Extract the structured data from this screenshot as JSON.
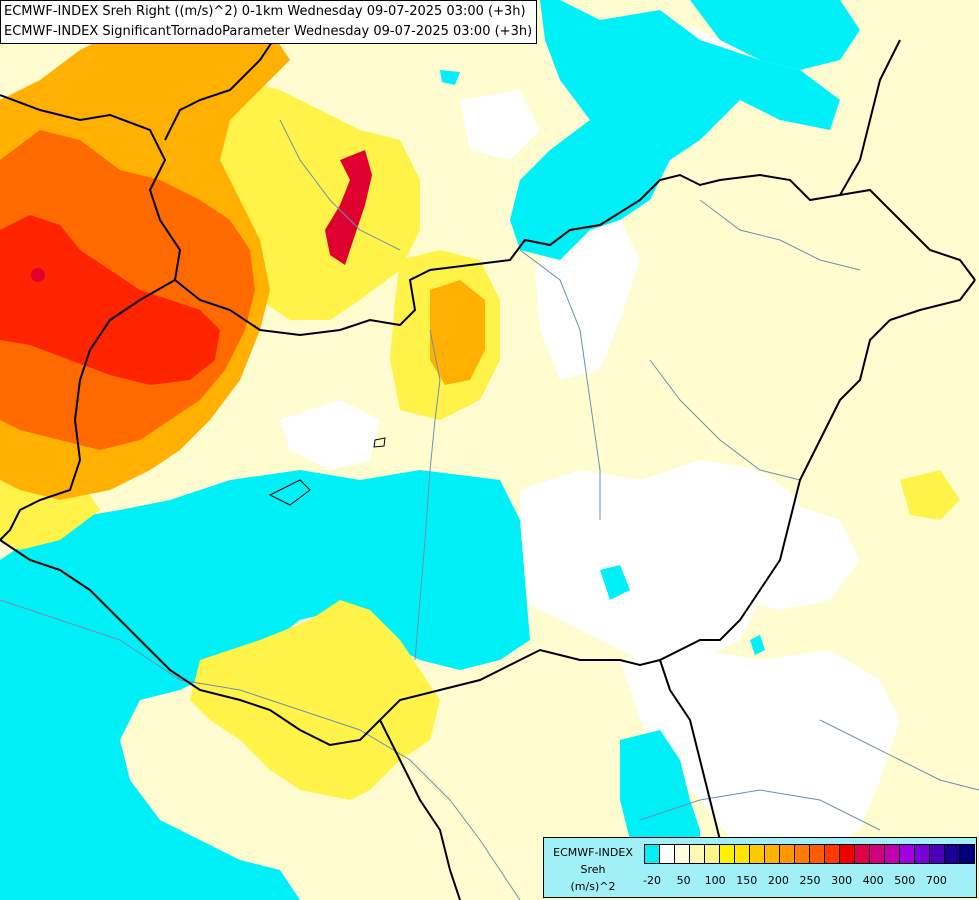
{
  "title_lines": [
    "ECMWF-INDEX Sreh Right ((m/s)^2) 0-1km Wednesday 09-07-2025 03:00 (+3h)",
    "ECMWF-INDEX SignificantTornadoParameter Wednesday 09-07-2025 03:00 (+3h)"
  ],
  "legend": {
    "line1": "ECMWF-INDEX",
    "line2": "Sreh",
    "line3": "(m/s)^2",
    "colors": [
      "#00f0f8",
      "#ffffff",
      "#fffde0",
      "#fff9b8",
      "#fff68a",
      "#fff200",
      "#ffe400",
      "#ffc800",
      "#ffb000",
      "#ff9600",
      "#ff7a00",
      "#ff5e00",
      "#ff3a00",
      "#f00000",
      "#e0004a",
      "#d00080",
      "#c000b0",
      "#a000e0",
      "#7800d8",
      "#4a00b8",
      "#1a0098",
      "#00007a"
    ],
    "ticks": [
      "-20",
      "50",
      "100",
      "150",
      "200",
      "250",
      "300",
      "400",
      "500",
      "700"
    ]
  },
  "colors": {
    "cyan": "#00f0f8",
    "pale_yellow": "#fffdcf",
    "yellow": "#fff34a",
    "orange": "#ffb000",
    "deep_orange": "#ff6a00",
    "red": "#ff2400",
    "crimson": "#e00030",
    "border": "#000000",
    "river": "#6e8fb0"
  }
}
